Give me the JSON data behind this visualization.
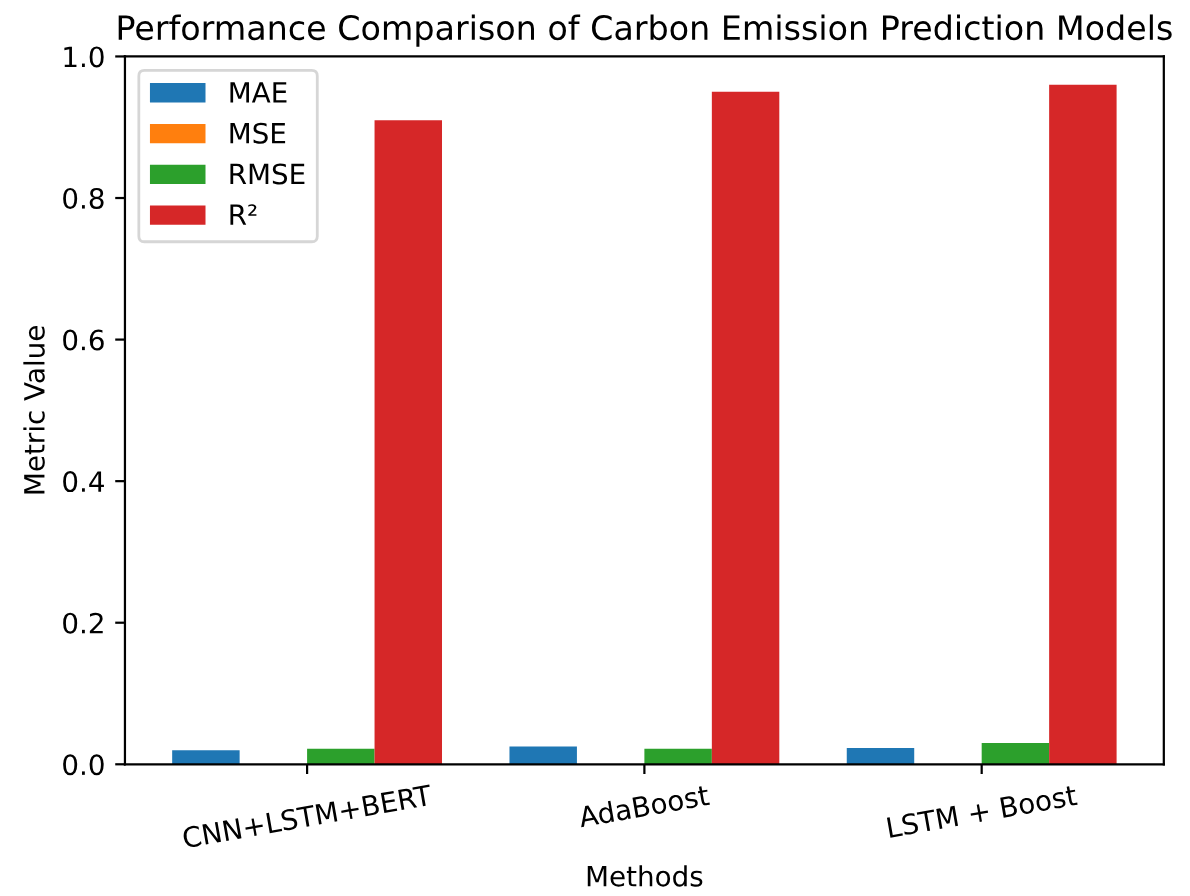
{
  "chart_data": {
    "type": "bar",
    "title": "Performance Comparison of Carbon Emission Prediction Models",
    "xlabel": "Methods",
    "ylabel": "Metric Value",
    "categories": [
      "CNN+LSTM+BERT",
      "AdaBoost",
      "LSTM + Boost"
    ],
    "series": [
      {
        "name": "MAE",
        "color": "#1f77b4",
        "values": [
          0.02,
          0.025,
          0.023
        ]
      },
      {
        "name": "MSE",
        "color": "#ff7f0e",
        "values": [
          0.0,
          0.0,
          0.0
        ]
      },
      {
        "name": "RMSE",
        "color": "#2ca02c",
        "values": [
          0.022,
          0.022,
          0.03
        ]
      },
      {
        "name": "R²",
        "color": "#d62728",
        "values": [
          0.91,
          0.95,
          0.96
        ]
      }
    ],
    "ylim": [
      0,
      1.0
    ],
    "yticks": [
      {
        "value": 0,
        "label": "0.0"
      },
      0.2,
      0.4,
      0.6,
      0.8,
      {
        "value": 1.0,
        "label": "1.0"
      }
    ],
    "legend": "top left",
    "grid": false
  }
}
